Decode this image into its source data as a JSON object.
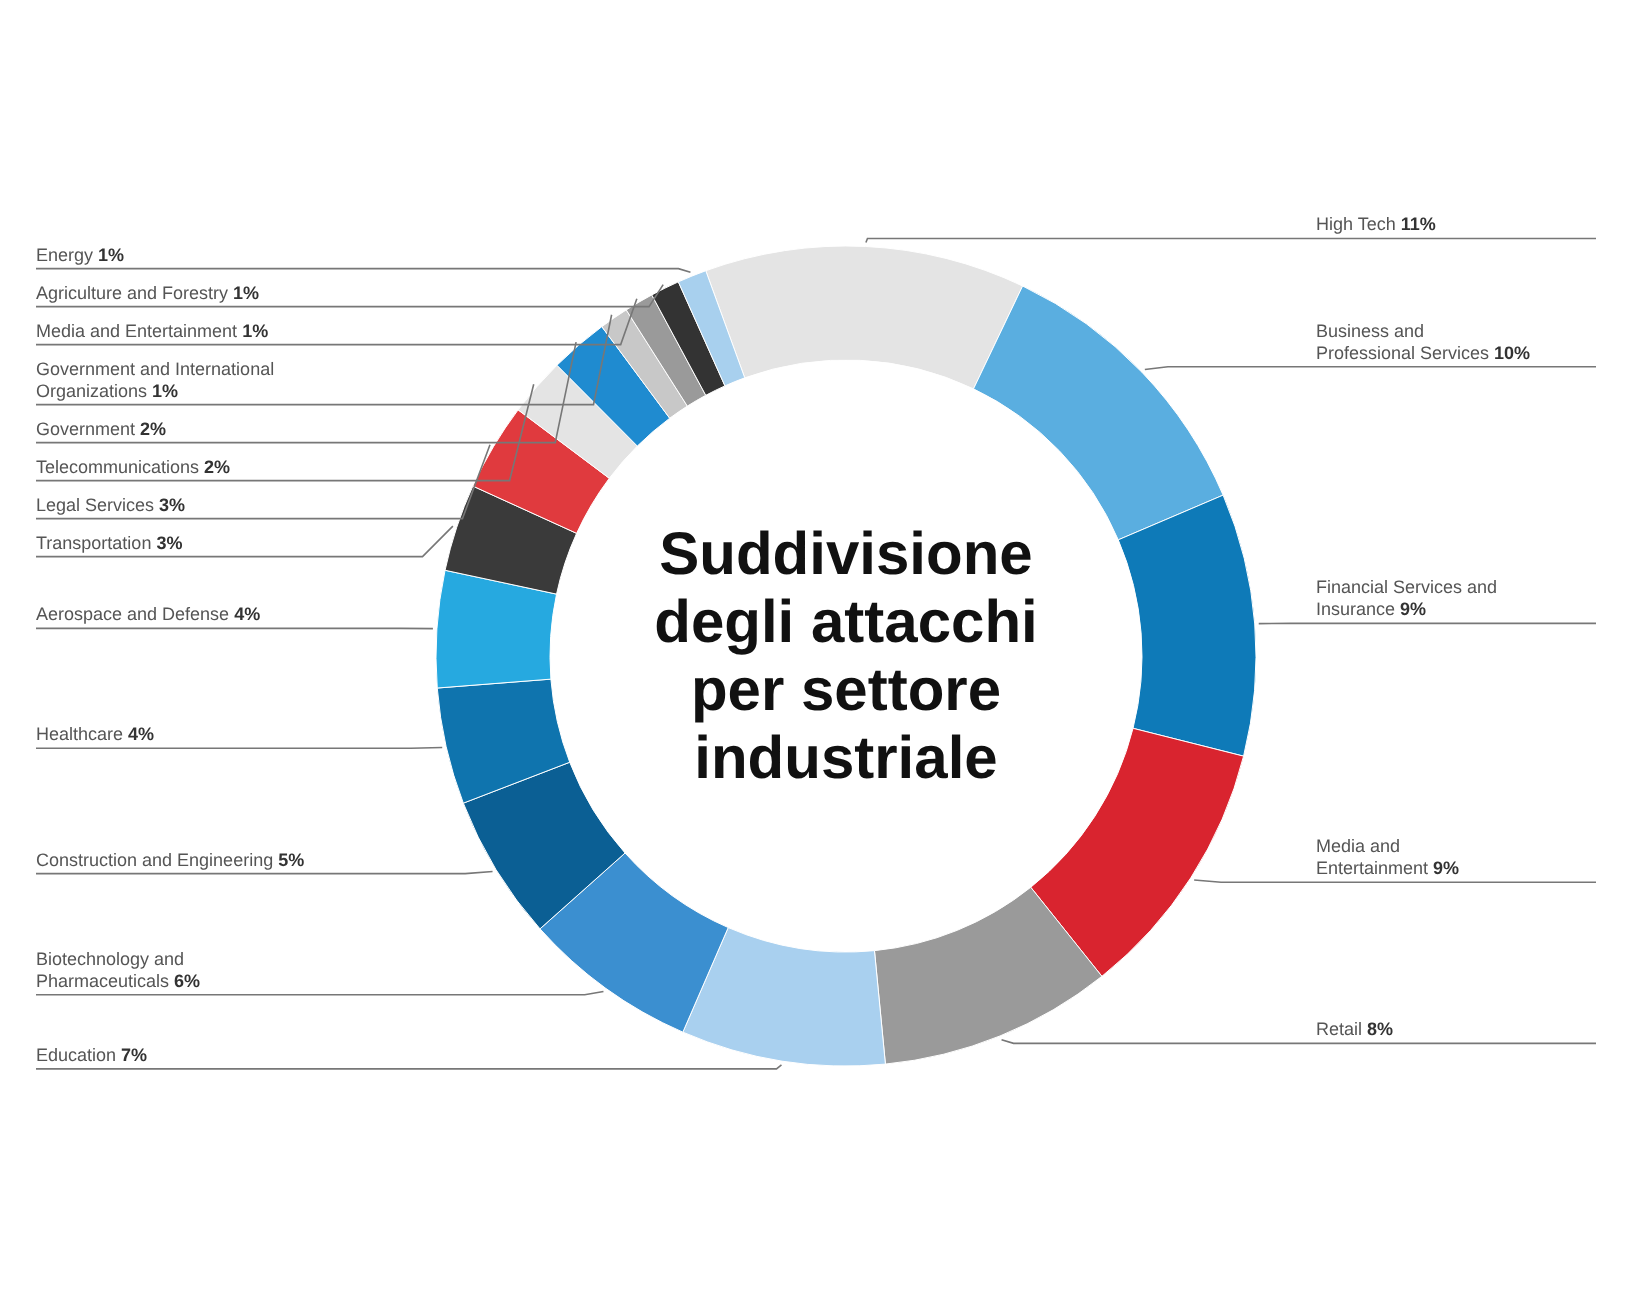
{
  "chart_data": {
    "type": "donut",
    "title": "Suddivisione degli attacchi per settore industriale",
    "categories": [
      "High Tech",
      "Business and Professional Services",
      "Financial Services and Insurance",
      "Media and Entertainment",
      "Retail",
      "Education",
      "Biotechnology and Pharmaceuticals",
      "Construction and Engineering",
      "Healthcare",
      "Aerospace and Defense",
      "Transportation",
      "Legal Services",
      "Telecommunications",
      "Government",
      "Government and International Organizations",
      "Media and Entertainment",
      "Agriculture and Forestry",
      "Energy"
    ],
    "values": [
      11,
      10,
      9,
      9,
      8,
      7,
      6,
      5,
      4,
      4,
      3,
      3,
      2,
      2,
      1,
      1,
      1,
      1
    ],
    "value_labels": [
      "11%",
      "10%",
      "9%",
      "9%",
      "8%",
      "7%",
      "6%",
      "5%",
      "4%",
      "4%",
      "3%",
      "3%",
      "2%",
      "2%",
      "1%",
      "1%",
      "1%",
      "1%"
    ],
    "colors": [
      "#e4e4e4",
      "#5aaee0",
      "#0e7ab8",
      "#d9242f",
      "#9a9a9a",
      "#a9d0ef",
      "#3b8fd0",
      "#0b5f94",
      "#0f74ae",
      "#26a9e0",
      "#3a3a3a",
      "#e03a3e",
      "#e4e4e4",
      "#1f8bd0",
      "#c8c8c8",
      "#9a9a9a",
      "#333333",
      "#a8d0ee"
    ]
  }
}
